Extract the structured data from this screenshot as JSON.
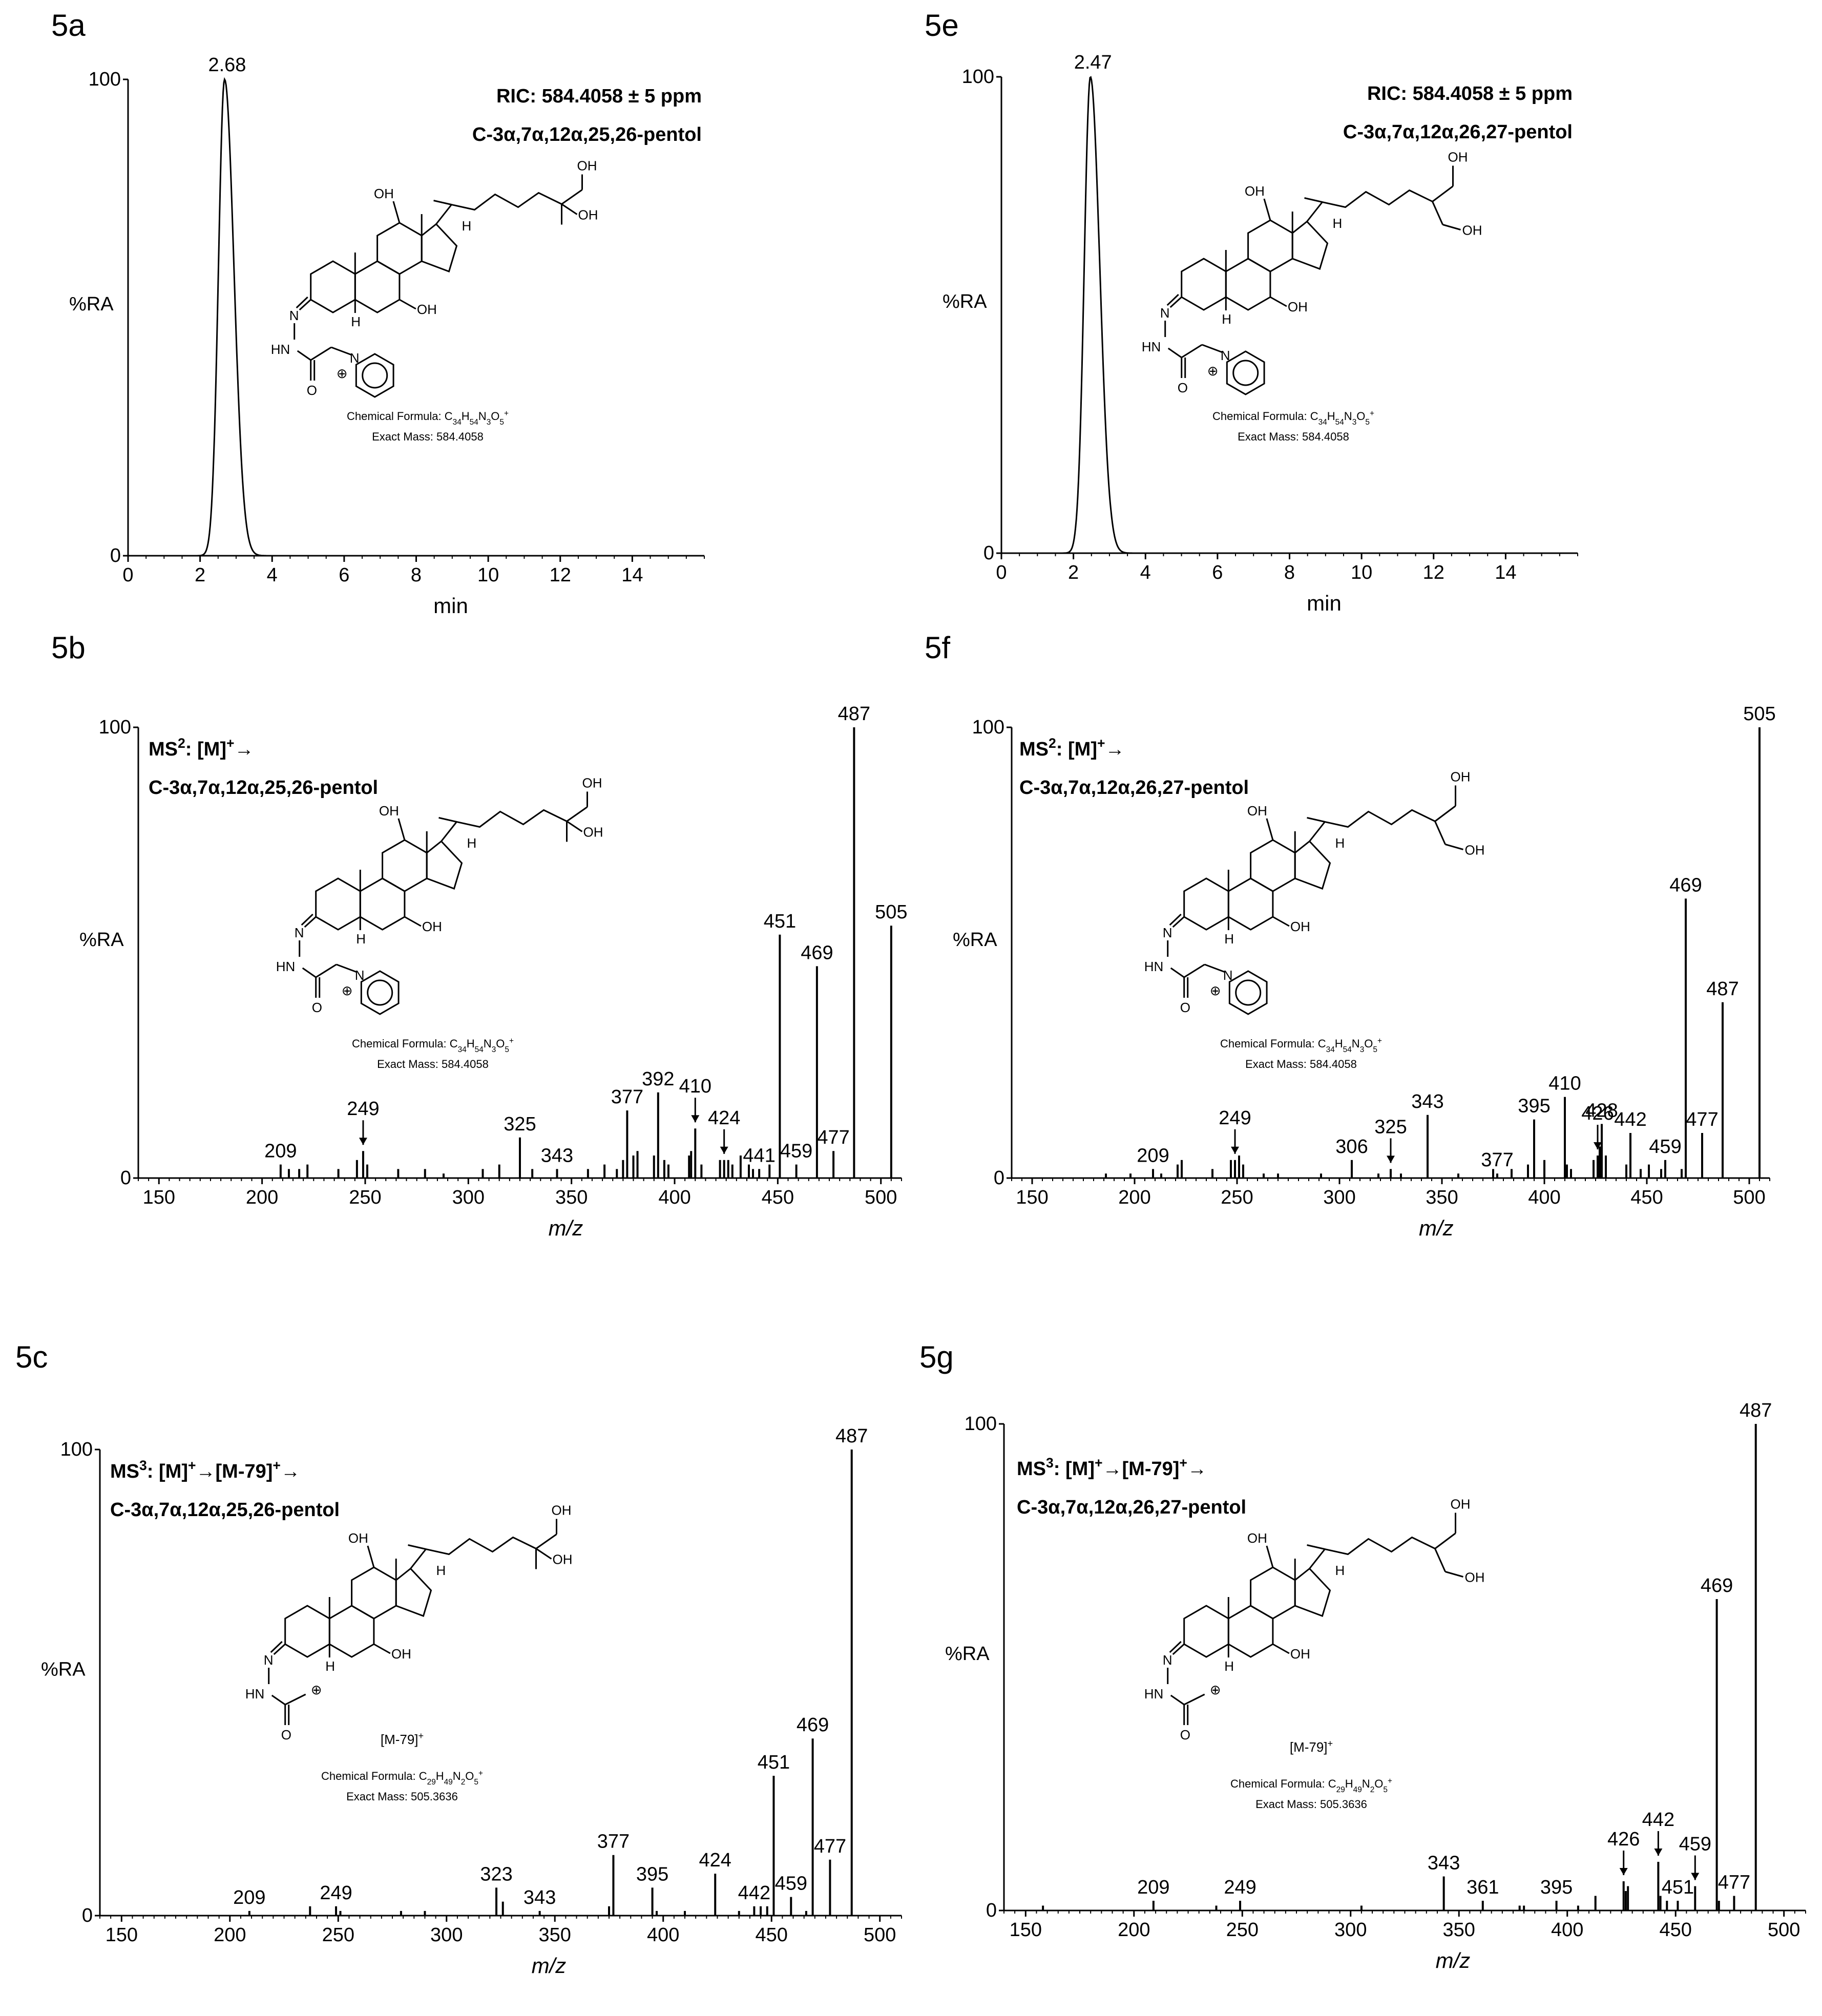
{
  "figure": {
    "panels": [
      {
        "id": "5a",
        "label": "5a",
        "kind": "chrom",
        "ylabel": "%RA",
        "xlabel": "min",
        "peak_label": "2.68",
        "peak_rt": 2.68,
        "header": [
          "RIC: 584.4058 ± 5 ppm",
          "C-3α,7α,12α,25,26-pentol"
        ],
        "ion_label": "",
        "chem": [
          "Chemical Formula: C34H54N3O5+",
          "Exact Mass: 584.4058"
        ],
        "variant": "2526",
        "tag": "pyr"
      },
      {
        "id": "5e",
        "label": "5e",
        "kind": "chrom",
        "ylabel": "%RA",
        "xlabel": "min",
        "peak_label": "2.47",
        "peak_rt": 2.47,
        "header": [
          "RIC: 584.4058 ± 5 ppm",
          "C-3α,7α,12α,26,27-pentol"
        ],
        "ion_label": "",
        "chem": [
          "Chemical Formula: C34H54N3O5+",
          "Exact Mass: 584.4058"
        ],
        "variant": "2627",
        "tag": "pyr"
      },
      {
        "id": "5b",
        "label": "5b",
        "kind": "ms",
        "ylabel": "%RA",
        "xlabel": "m/z",
        "header": [
          "MS²: [M]+→",
          "C-3α,7α,12α,25,26-pentol"
        ],
        "ion_label": "",
        "chem": [
          "Chemical Formula: C34H54N3O5+",
          "Exact Mass: 584.4058"
        ],
        "variant": "2526",
        "tag": "pyr",
        "arrows": [
          249,
          410,
          424
        ]
      },
      {
        "id": "5f",
        "label": "5f",
        "kind": "ms",
        "ylabel": "%RA",
        "xlabel": "m/z",
        "header": [
          "MS²: [M]+→",
          "C-3α,7α,12α,26,27-pentol"
        ],
        "ion_label": "",
        "chem": [
          "Chemical Formula: C34H54N3O5+",
          "Exact Mass: 584.4058"
        ],
        "variant": "2627",
        "tag": "pyr",
        "arrows": [
          249,
          325,
          426
        ]
      },
      {
        "id": "5c",
        "label": "5c",
        "kind": "ms",
        "ylabel": "%RA",
        "xlabel": "m/z",
        "header": [
          "MS³: [M]+→[M-79]+→",
          "C-3α,7α,12α,25,26-pentol"
        ],
        "ion_label": "[M-79]+",
        "chem": [
          "Chemical Formula: C29H49N2O5+",
          "Exact Mass: 505.3636"
        ],
        "variant": "2526",
        "tag": "acyl",
        "arrows": []
      },
      {
        "id": "5g",
        "label": "5g",
        "kind": "ms",
        "ylabel": "%RA",
        "xlabel": "m/z",
        "header": [
          "MS³: [M]+→[M-79]+→",
          "C-3α,7α,12α,26,27-pentol"
        ],
        "ion_label": "[M-79]+",
        "chem": [
          "Chemical Formula: C29H49N2O5+",
          "Exact Mass: 505.3636"
        ],
        "variant": "2627",
        "tag": "acyl",
        "arrows": [
          426,
          442,
          459
        ]
      }
    ],
    "mol_labels": {
      "oh": "OH",
      "h": "H",
      "hn": "HN",
      "n": "N",
      "o": "O",
      "n_plus": "N",
      "plus": "⊕"
    }
  },
  "chart_data": [
    {
      "type": "line",
      "panel": "5a",
      "title": "RIC: 584.4058 ± 5 ppm — C-3α,7α,12α,25,26-pentol",
      "xlabel": "min",
      "ylabel": "%RA",
      "xlim": [
        0,
        16
      ],
      "ylim": [
        0,
        100
      ],
      "xticks": [
        0,
        2,
        4,
        6,
        8,
        10,
        12,
        14
      ],
      "yticks": [
        0,
        100
      ],
      "series": [
        {
          "name": "RIC",
          "peak_x": 2.68,
          "peak_y": 100
        }
      ]
    },
    {
      "type": "line",
      "panel": "5e",
      "title": "RIC: 584.4058 ± 5 ppm — C-3α,7α,12α,26,27-pentol",
      "xlabel": "min",
      "ylabel": "%RA",
      "xlim": [
        0,
        16
      ],
      "ylim": [
        0,
        100
      ],
      "xticks": [
        0,
        2,
        4,
        6,
        8,
        10,
        12,
        14
      ],
      "yticks": [
        0,
        100
      ],
      "series": [
        {
          "name": "RIC",
          "peak_x": 2.47,
          "peak_y": 100
        }
      ]
    },
    {
      "type": "bar",
      "panel": "5b",
      "title": "MS²: [M]+→ C-3α,7α,12α,25,26-pentol",
      "xlabel": "m/z",
      "ylabel": "%RA",
      "xlim": [
        140,
        510
      ],
      "ylim": [
        0,
        100
      ],
      "xticks": [
        150,
        200,
        250,
        300,
        350,
        400,
        450,
        500
      ],
      "yticks": [
        0,
        100
      ],
      "peaks": [
        {
          "mz": 209,
          "int": 3,
          "label": "209"
        },
        {
          "mz": 249,
          "int": 6,
          "label": "249"
        },
        {
          "mz": 325,
          "int": 9,
          "label": "325"
        },
        {
          "mz": 343,
          "int": 2,
          "label": "343"
        },
        {
          "mz": 377,
          "int": 15,
          "label": "377"
        },
        {
          "mz": 392,
          "int": 19,
          "label": "392"
        },
        {
          "mz": 410,
          "int": 11,
          "label": "410"
        },
        {
          "mz": 424,
          "int": 4,
          "label": "424"
        },
        {
          "mz": 441,
          "int": 2,
          "label": "441"
        },
        {
          "mz": 451,
          "int": 54,
          "label": "451"
        },
        {
          "mz": 459,
          "int": 3,
          "label": "459"
        },
        {
          "mz": 469,
          "int": 47,
          "label": "469"
        },
        {
          "mz": 477,
          "int": 6,
          "label": "477"
        },
        {
          "mz": 487,
          "int": 100,
          "label": "487"
        },
        {
          "mz": 505,
          "int": 56,
          "label": "505"
        }
      ],
      "minor": [
        [
          213,
          2
        ],
        [
          218,
          2
        ],
        [
          222,
          3
        ],
        [
          237,
          2
        ],
        [
          246,
          4
        ],
        [
          251,
          3
        ],
        [
          266,
          2
        ],
        [
          279,
          2
        ],
        [
          288,
          1
        ],
        [
          307,
          2
        ],
        [
          315,
          3
        ],
        [
          331,
          2
        ],
        [
          358,
          2
        ],
        [
          366,
          3
        ],
        [
          372,
          2
        ],
        [
          375,
          4
        ],
        [
          380,
          5
        ],
        [
          382,
          6
        ],
        [
          390,
          5
        ],
        [
          395,
          4
        ],
        [
          397,
          3
        ],
        [
          407,
          5
        ],
        [
          408,
          6
        ],
        [
          413,
          3
        ],
        [
          422,
          4
        ],
        [
          426,
          4
        ],
        [
          428,
          3
        ],
        [
          432,
          5
        ],
        [
          436,
          3
        ],
        [
          438,
          2
        ],
        [
          446,
          3
        ]
      ]
    },
    {
      "type": "bar",
      "panel": "5f",
      "title": "MS²: [M]+→ C-3α,7α,12α,26,27-pentol",
      "xlabel": "m/z",
      "ylabel": "%RA",
      "xlim": [
        140,
        510
      ],
      "ylim": [
        0,
        100
      ],
      "xticks": [
        150,
        200,
        250,
        300,
        350,
        400,
        450,
        500
      ],
      "yticks": [
        0,
        100
      ],
      "peaks": [
        {
          "mz": 209,
          "int": 2,
          "label": "209"
        },
        {
          "mz": 249,
          "int": 4,
          "label": "249"
        },
        {
          "mz": 306,
          "int": 4,
          "label": "306"
        },
        {
          "mz": 325,
          "int": 2,
          "label": "325"
        },
        {
          "mz": 343,
          "int": 14,
          "label": "343"
        },
        {
          "mz": 377,
          "int": 1,
          "label": "377"
        },
        {
          "mz": 395,
          "int": 13,
          "label": "395"
        },
        {
          "mz": 410,
          "int": 18,
          "label": "410"
        },
        {
          "mz": 426,
          "int": 5,
          "label": "426"
        },
        {
          "mz": 428,
          "int": 12,
          "label": "428"
        },
        {
          "mz": 442,
          "int": 10,
          "label": "442"
        },
        {
          "mz": 459,
          "int": 4,
          "label": "459"
        },
        {
          "mz": 469,
          "int": 62,
          "label": "469"
        },
        {
          "mz": 477,
          "int": 10,
          "label": "477"
        },
        {
          "mz": 487,
          "int": 39,
          "label": "487"
        },
        {
          "mz": 505,
          "int": 100,
          "label": "505"
        }
      ],
      "minor": [
        [
          186,
          1
        ],
        [
          198,
          1
        ],
        [
          213,
          1
        ],
        [
          221,
          3
        ],
        [
          223,
          4
        ],
        [
          238,
          2
        ],
        [
          247,
          4
        ],
        [
          251,
          5
        ],
        [
          253,
          3
        ],
        [
          263,
          1
        ],
        [
          270,
          1
        ],
        [
          291,
          1
        ],
        [
          319,
          1
        ],
        [
          330,
          1
        ],
        [
          358,
          1
        ],
        [
          375,
          2
        ],
        [
          384,
          2
        ],
        [
          392,
          3
        ],
        [
          400,
          4
        ],
        [
          411,
          3
        ],
        [
          413,
          2
        ],
        [
          424,
          4
        ],
        [
          427,
          7
        ],
        [
          430,
          5
        ],
        [
          440,
          3
        ],
        [
          447,
          2
        ],
        [
          451,
          3
        ],
        [
          457,
          2
        ],
        [
          467,
          2
        ]
      ]
    },
    {
      "type": "bar",
      "panel": "5c",
      "title": "MS³: [M]+→[M-79]+→ C-3α,7α,12α,25,26-pentol",
      "xlabel": "m/z",
      "ylabel": "%RA",
      "xlim": [
        140,
        510
      ],
      "ylim": [
        0,
        100
      ],
      "xticks": [
        150,
        200,
        250,
        300,
        350,
        400,
        450,
        500
      ],
      "yticks": [
        0,
        100
      ],
      "peaks": [
        {
          "mz": 209,
          "int": 1,
          "label": "209"
        },
        {
          "mz": 249,
          "int": 2,
          "label": "249"
        },
        {
          "mz": 323,
          "int": 6,
          "label": "323"
        },
        {
          "mz": 343,
          "int": 1,
          "label": "343"
        },
        {
          "mz": 377,
          "int": 13,
          "label": "377"
        },
        {
          "mz": 395,
          "int": 6,
          "label": "395"
        },
        {
          "mz": 424,
          "int": 9,
          "label": "424"
        },
        {
          "mz": 442,
          "int": 2,
          "label": "442"
        },
        {
          "mz": 451,
          "int": 30,
          "label": "451"
        },
        {
          "mz": 459,
          "int": 4,
          "label": "459"
        },
        {
          "mz": 469,
          "int": 38,
          "label": "469"
        },
        {
          "mz": 477,
          "int": 12,
          "label": "477"
        },
        {
          "mz": 487,
          "int": 100,
          "label": "487"
        }
      ],
      "minor": [
        [
          237,
          2
        ],
        [
          251,
          1
        ],
        [
          279,
          1
        ],
        [
          290,
          1
        ],
        [
          326,
          3
        ],
        [
          375,
          2
        ],
        [
          397,
          1
        ],
        [
          410,
          1
        ],
        [
          435,
          1
        ],
        [
          445,
          2
        ],
        [
          448,
          2
        ],
        [
          466,
          1
        ]
      ]
    },
    {
      "type": "bar",
      "panel": "5g",
      "title": "MS³: [M]+→[M-79]+→ C-3α,7α,12α,26,27-pentol",
      "xlabel": "m/z",
      "ylabel": "%RA",
      "xlim": [
        140,
        510
      ],
      "ylim": [
        0,
        100
      ],
      "xticks": [
        150,
        200,
        250,
        300,
        350,
        400,
        450,
        500
      ],
      "yticks": [
        0,
        100
      ],
      "peaks": [
        {
          "mz": 209,
          "int": 2,
          "label": "209"
        },
        {
          "mz": 249,
          "int": 2,
          "label": "249"
        },
        {
          "mz": 343,
          "int": 7,
          "label": "343"
        },
        {
          "mz": 361,
          "int": 2,
          "label": "361"
        },
        {
          "mz": 395,
          "int": 2,
          "label": "395"
        },
        {
          "mz": 426,
          "int": 6,
          "label": "426"
        },
        {
          "mz": 442,
          "int": 10,
          "label": "442"
        },
        {
          "mz": 451,
          "int": 2,
          "label": "451"
        },
        {
          "mz": 459,
          "int": 5,
          "label": "459"
        },
        {
          "mz": 469,
          "int": 64,
          "label": "469"
        },
        {
          "mz": 477,
          "int": 3,
          "label": "477"
        },
        {
          "mz": 487,
          "int": 100,
          "label": "487"
        }
      ],
      "minor": [
        [
          158,
          1
        ],
        [
          238,
          1
        ],
        [
          305,
          1
        ],
        [
          378,
          1
        ],
        [
          380,
          1
        ],
        [
          405,
          1
        ],
        [
          413,
          3
        ],
        [
          427,
          4
        ],
        [
          428,
          5
        ],
        [
          443,
          3
        ],
        [
          446,
          2
        ],
        [
          470,
          2
        ]
      ]
    }
  ]
}
